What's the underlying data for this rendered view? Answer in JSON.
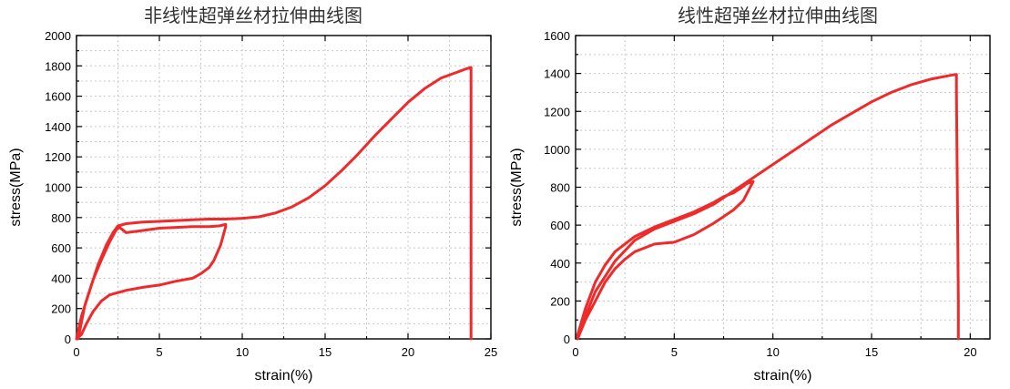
{
  "colors": {
    "curve": "#ee2a2a",
    "frame": "#000000",
    "grid": "#c8c8c8"
  },
  "chart_data": [
    {
      "type": "line",
      "title": "非线性超弹丝材拉伸曲线图",
      "xlabel": "strain(%)",
      "ylabel": "stress(MPa)",
      "xlim": [
        0,
        25
      ],
      "ylim": [
        0,
        2000
      ],
      "xticks": [
        0,
        5,
        10,
        15,
        20,
        25
      ],
      "yticks": [
        0,
        200,
        400,
        600,
        800,
        1000,
        1200,
        1400,
        1600,
        1800,
        2000
      ],
      "grid": true,
      "series": [
        {
          "x": [
            0.1,
            0.5,
            1.0,
            1.5,
            2.0,
            2.4,
            2.6,
            3.0,
            4.0,
            5.0,
            6.0,
            7.0,
            8.0,
            8.6,
            9.0,
            9.0,
            8.7,
            8.3,
            8.0,
            7.5,
            7.0,
            6.0,
            5.0,
            4.0,
            3.0,
            2.0,
            1.5,
            1.0,
            0.6,
            0.3,
            0.0,
            0.0,
            0.3,
            0.8,
            1.3,
            1.8,
            2.2,
            2.5,
            3.0,
            4.0,
            5.0,
            6.0,
            7.0,
            8.0,
            9.0,
            10.0,
            11.0,
            12.0,
            13.0,
            14.0,
            15.0,
            16.0,
            17.0,
            18.0,
            19.0,
            20.0,
            21.0,
            22.0,
            23.0,
            23.5,
            23.8,
            23.8,
            23.8,
            23.8
          ],
          "y": [
            0,
            220,
            390,
            520,
            640,
            720,
            735,
            700,
            715,
            730,
            735,
            740,
            740,
            745,
            755,
            740,
            620,
            520,
            470,
            430,
            400,
            380,
            355,
            340,
            320,
            290,
            250,
            180,
            100,
            30,
            0,
            0,
            150,
            320,
            490,
            620,
            700,
            745,
            760,
            770,
            775,
            780,
            785,
            790,
            790,
            795,
            805,
            830,
            870,
            930,
            1010,
            1110,
            1220,
            1340,
            1450,
            1560,
            1650,
            1720,
            1760,
            1780,
            1790,
            1700,
            300,
            0
          ]
        }
      ]
    },
    {
      "type": "line",
      "title": "线性超弹丝材拉伸曲线图",
      "xlabel": "strain(%)",
      "ylabel": "stress(MPa)",
      "xlim": [
        0,
        21
      ],
      "ylim": [
        0,
        1600
      ],
      "xticks": [
        0,
        5,
        10,
        15,
        20
      ],
      "yticks": [
        0,
        200,
        400,
        600,
        800,
        1000,
        1200,
        1400,
        1600
      ],
      "grid": true,
      "series": [
        {
          "x": [
            0.1,
            0.5,
            1.0,
            1.5,
            2.0,
            2.5,
            3.0,
            3.5,
            4.0,
            5.0,
            6.0,
            7.0,
            8.0,
            8.5,
            9.0,
            8.7,
            8.3,
            8.0,
            7.5,
            7.0,
            6.0,
            5.0,
            4.0,
            3.0,
            2.0,
            1.5,
            1.0,
            0.5,
            0.1,
            0.1,
            0.5,
            1.0,
            2.0,
            3.0,
            4.0,
            5.0,
            6.0,
            7.0,
            8.0,
            9.0,
            10.0,
            11.0,
            12.0,
            13.0,
            14.0,
            15.0,
            16.0,
            17.0,
            18.0,
            19.0,
            19.3,
            19.3,
            19.4,
            19.4
          ],
          "y": [
            0,
            100,
            200,
            300,
            370,
            420,
            460,
            480,
            500,
            510,
            550,
            610,
            680,
            730,
            830,
            820,
            790,
            770,
            750,
            720,
            670,
            630,
            590,
            540,
            460,
            390,
            300,
            160,
            20,
            0,
            120,
            250,
            410,
            520,
            580,
            620,
            660,
            710,
            780,
            850,
            920,
            990,
            1060,
            1130,
            1190,
            1250,
            1300,
            1340,
            1370,
            1390,
            1395,
            1300,
            200,
            0
          ]
        }
      ]
    }
  ]
}
